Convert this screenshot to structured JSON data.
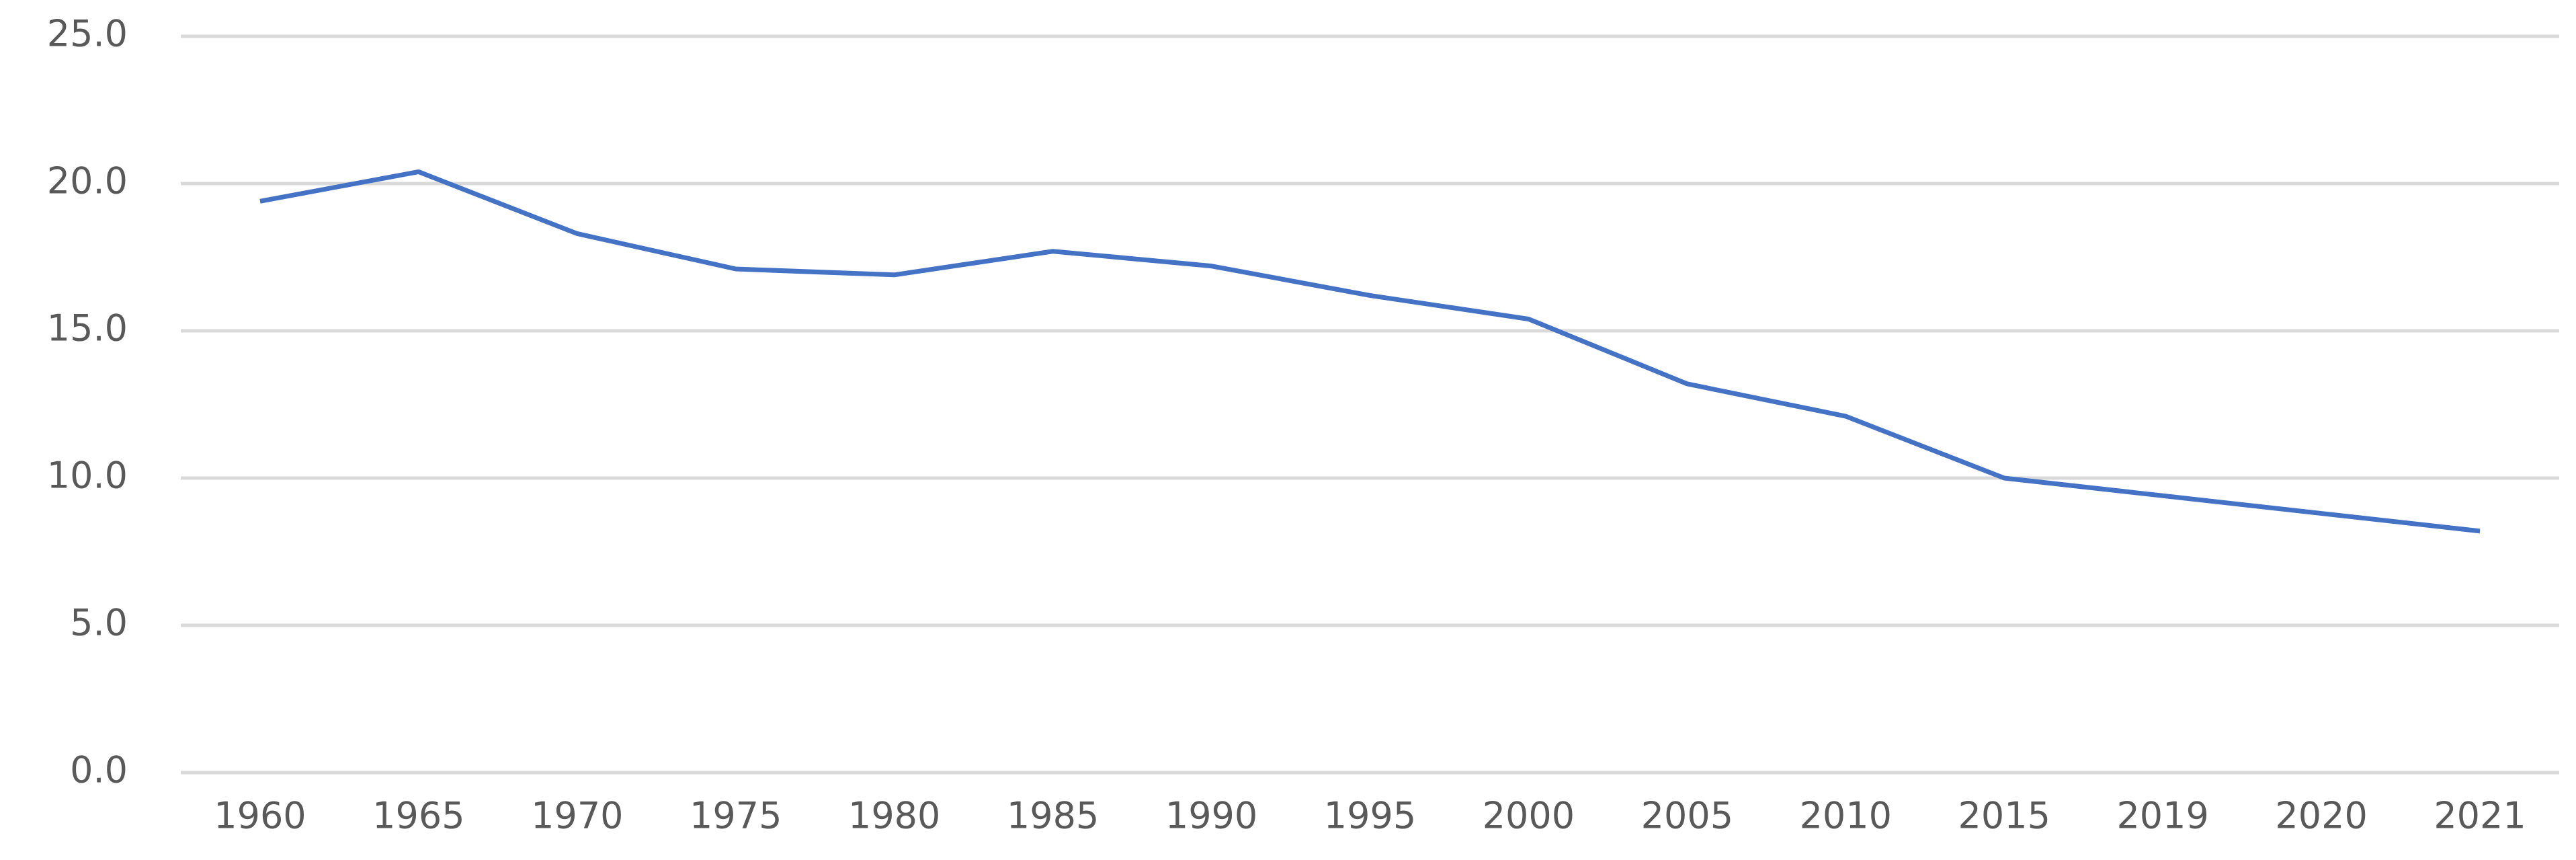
{
  "chart_data": {
    "type": "line",
    "categories": [
      "1960",
      "1965",
      "1970",
      "1975",
      "1980",
      "1985",
      "1990",
      "1995",
      "2000",
      "2005",
      "2010",
      "2015",
      "2019",
      "2020",
      "2021"
    ],
    "series": [
      {
        "color": "#4472c4",
        "values": [
          19.4,
          20.4,
          18.3,
          17.1,
          16.9,
          17.7,
          17.2,
          16.2,
          15.4,
          13.2,
          12.1,
          10.0,
          9.4,
          8.8,
          8.2
        ]
      }
    ],
    "ylim": [
      0,
      25
    ],
    "yticks": [
      {
        "value": 0,
        "label": "0.0"
      },
      {
        "value": 5,
        "label": "5.0"
      },
      {
        "value": 10,
        "label": "10.0"
      },
      {
        "value": 15,
        "label": "15.0"
      },
      {
        "value": 20,
        "label": "20.0"
      },
      {
        "value": 25,
        "label": "25.0"
      }
    ],
    "grid": true
  }
}
